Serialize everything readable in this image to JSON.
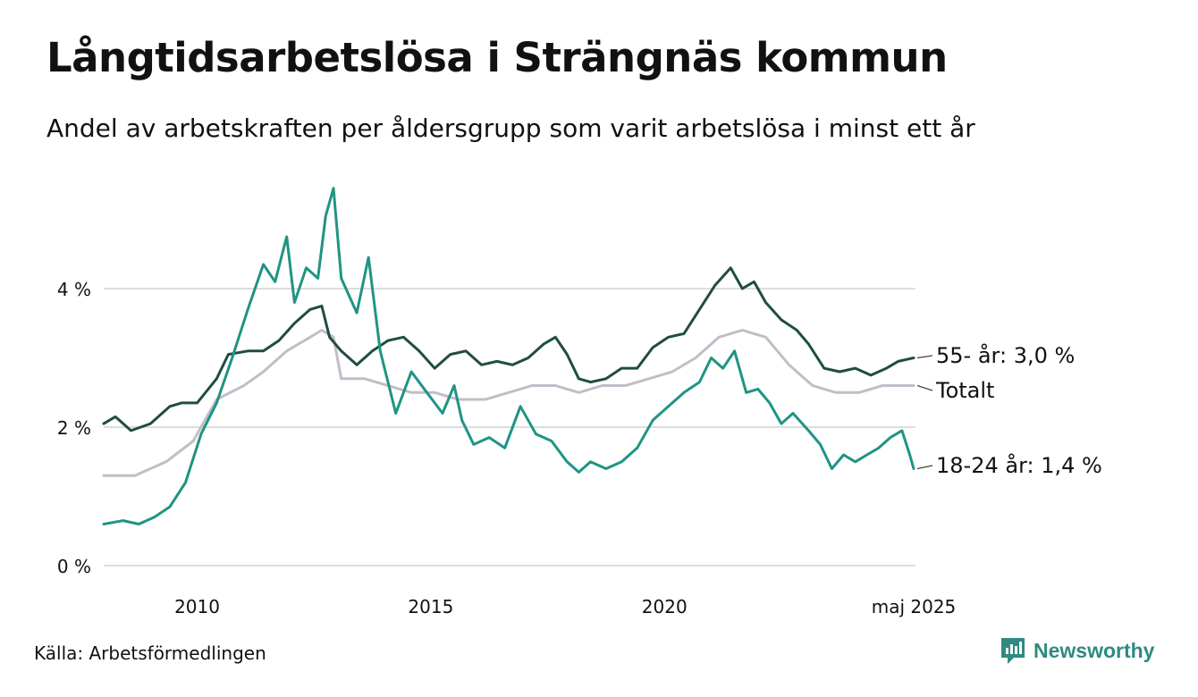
{
  "title": "Långtidsarbetslösa i Strängnäs kommun",
  "subtitle": "Andel av arbetskraften per åldersgrupp som varit arbetslösa i minst ett år",
  "source": "Källa: Arbetsförmedlingen",
  "brand": "Newsworthy",
  "colors": {
    "grid": "#dddddd",
    "older": "#1f4d44",
    "total": "#c2bdc8",
    "young": "#1f9484",
    "brand": "#2f8a83"
  },
  "chart_data": {
    "type": "line",
    "ylim": [
      0,
      5.5
    ],
    "xlim": [
      "2008-01",
      "2025-05"
    ],
    "yticks": [
      {
        "value": 0,
        "label": "0 %"
      },
      {
        "value": 2,
        "label": "2 %"
      },
      {
        "value": 4,
        "label": "4 %"
      }
    ],
    "xticks": [
      {
        "date": "2010-01",
        "label": "2010"
      },
      {
        "date": "2015-01",
        "label": "2015"
      },
      {
        "date": "2020-01",
        "label": "2020"
      },
      {
        "date": "2025-05",
        "label": "maj 2025"
      }
    ],
    "grid": true,
    "series": [
      {
        "key": "total",
        "label": "Totalt",
        "color": "#c2bdc8",
        "points": [
          [
            "2008-01",
            1.3
          ],
          [
            "2008-09",
            1.3
          ],
          [
            "2009-05",
            1.5
          ],
          [
            "2009-12",
            1.8
          ],
          [
            "2010-06",
            2.4
          ],
          [
            "2011-01",
            2.6
          ],
          [
            "2011-06",
            2.8
          ],
          [
            "2011-12",
            3.1
          ],
          [
            "2012-06",
            3.3
          ],
          [
            "2012-09",
            3.4
          ],
          [
            "2012-12",
            3.3
          ],
          [
            "2013-02",
            2.7
          ],
          [
            "2013-08",
            2.7
          ],
          [
            "2014-02",
            2.6
          ],
          [
            "2014-08",
            2.5
          ],
          [
            "2015-02",
            2.5
          ],
          [
            "2015-08",
            2.4
          ],
          [
            "2016-03",
            2.4
          ],
          [
            "2016-09",
            2.5
          ],
          [
            "2017-03",
            2.6
          ],
          [
            "2017-09",
            2.6
          ],
          [
            "2018-03",
            2.5
          ],
          [
            "2018-09",
            2.6
          ],
          [
            "2019-03",
            2.6
          ],
          [
            "2019-09",
            2.7
          ],
          [
            "2020-03",
            2.8
          ],
          [
            "2020-09",
            3.0
          ],
          [
            "2021-03",
            3.3
          ],
          [
            "2021-09",
            3.4
          ],
          [
            "2022-03",
            3.3
          ],
          [
            "2022-09",
            2.9
          ],
          [
            "2023-03",
            2.6
          ],
          [
            "2023-09",
            2.5
          ],
          [
            "2024-03",
            2.5
          ],
          [
            "2024-09",
            2.6
          ],
          [
            "2025-05",
            2.6
          ]
        ]
      },
      {
        "key": "older",
        "label": "55- år: 3,0 %",
        "color": "#1f4d44",
        "points": [
          [
            "2008-01",
            2.05
          ],
          [
            "2008-04",
            2.15
          ],
          [
            "2008-08",
            1.95
          ],
          [
            "2009-01",
            2.05
          ],
          [
            "2009-06",
            2.3
          ],
          [
            "2009-09",
            2.35
          ],
          [
            "2010-01",
            2.35
          ],
          [
            "2010-06",
            2.7
          ],
          [
            "2010-09",
            3.05
          ],
          [
            "2011-02",
            3.1
          ],
          [
            "2011-06",
            3.1
          ],
          [
            "2011-10",
            3.25
          ],
          [
            "2012-02",
            3.5
          ],
          [
            "2012-06",
            3.7
          ],
          [
            "2012-09",
            3.75
          ],
          [
            "2012-11",
            3.3
          ],
          [
            "2013-02",
            3.1
          ],
          [
            "2013-06",
            2.9
          ],
          [
            "2013-10",
            3.1
          ],
          [
            "2014-02",
            3.25
          ],
          [
            "2014-06",
            3.3
          ],
          [
            "2014-10",
            3.1
          ],
          [
            "2015-02",
            2.85
          ],
          [
            "2015-06",
            3.05
          ],
          [
            "2015-10",
            3.1
          ],
          [
            "2016-02",
            2.9
          ],
          [
            "2016-06",
            2.95
          ],
          [
            "2016-10",
            2.9
          ],
          [
            "2017-02",
            3.0
          ],
          [
            "2017-06",
            3.2
          ],
          [
            "2017-09",
            3.3
          ],
          [
            "2017-12",
            3.05
          ],
          [
            "2018-03",
            2.7
          ],
          [
            "2018-06",
            2.65
          ],
          [
            "2018-10",
            2.7
          ],
          [
            "2019-02",
            2.85
          ],
          [
            "2019-06",
            2.85
          ],
          [
            "2019-10",
            3.15
          ],
          [
            "2020-02",
            3.3
          ],
          [
            "2020-06",
            3.35
          ],
          [
            "2020-10",
            3.7
          ],
          [
            "2021-02",
            4.05
          ],
          [
            "2021-06",
            4.3
          ],
          [
            "2021-09",
            4.0
          ],
          [
            "2021-12",
            4.1
          ],
          [
            "2022-03",
            3.8
          ],
          [
            "2022-07",
            3.55
          ],
          [
            "2022-11",
            3.4
          ],
          [
            "2023-02",
            3.2
          ],
          [
            "2023-06",
            2.85
          ],
          [
            "2023-10",
            2.8
          ],
          [
            "2024-02",
            2.85
          ],
          [
            "2024-06",
            2.75
          ],
          [
            "2024-10",
            2.85
          ],
          [
            "2025-01",
            2.95
          ],
          [
            "2025-05",
            3.0
          ]
        ]
      },
      {
        "key": "young",
        "label": "18-24 år: 1,4 %",
        "color": "#1f9484",
        "points": [
          [
            "2008-01",
            0.6
          ],
          [
            "2008-06",
            0.65
          ],
          [
            "2008-10",
            0.6
          ],
          [
            "2009-02",
            0.7
          ],
          [
            "2009-06",
            0.85
          ],
          [
            "2009-10",
            1.2
          ],
          [
            "2010-02",
            1.9
          ],
          [
            "2010-06",
            2.35
          ],
          [
            "2010-10",
            3.0
          ],
          [
            "2011-02",
            3.7
          ],
          [
            "2011-06",
            4.35
          ],
          [
            "2011-09",
            4.1
          ],
          [
            "2011-12",
            4.75
          ],
          [
            "2012-02",
            3.8
          ],
          [
            "2012-05",
            4.3
          ],
          [
            "2012-08",
            4.15
          ],
          [
            "2012-10",
            5.05
          ],
          [
            "2012-12",
            5.45
          ],
          [
            "2013-02",
            4.15
          ],
          [
            "2013-06",
            3.65
          ],
          [
            "2013-09",
            4.45
          ],
          [
            "2013-12",
            3.1
          ],
          [
            "2014-04",
            2.2
          ],
          [
            "2014-08",
            2.8
          ],
          [
            "2014-12",
            2.5
          ],
          [
            "2015-04",
            2.2
          ],
          [
            "2015-07",
            2.6
          ],
          [
            "2015-09",
            2.1
          ],
          [
            "2015-12",
            1.75
          ],
          [
            "2016-04",
            1.85
          ],
          [
            "2016-08",
            1.7
          ],
          [
            "2016-12",
            2.3
          ],
          [
            "2017-04",
            1.9
          ],
          [
            "2017-08",
            1.8
          ],
          [
            "2017-12",
            1.5
          ],
          [
            "2018-03",
            1.35
          ],
          [
            "2018-06",
            1.5
          ],
          [
            "2018-10",
            1.4
          ],
          [
            "2019-02",
            1.5
          ],
          [
            "2019-06",
            1.7
          ],
          [
            "2019-10",
            2.1
          ],
          [
            "2020-02",
            2.3
          ],
          [
            "2020-06",
            2.5
          ],
          [
            "2020-10",
            2.65
          ],
          [
            "2021-01",
            3.0
          ],
          [
            "2021-04",
            2.85
          ],
          [
            "2021-07",
            3.1
          ],
          [
            "2021-10",
            2.5
          ],
          [
            "2022-01",
            2.55
          ],
          [
            "2022-04",
            2.35
          ],
          [
            "2022-07",
            2.05
          ],
          [
            "2022-10",
            2.2
          ],
          [
            "2023-02",
            1.95
          ],
          [
            "2023-05",
            1.75
          ],
          [
            "2023-08",
            1.4
          ],
          [
            "2023-11",
            1.6
          ],
          [
            "2024-02",
            1.5
          ],
          [
            "2024-05",
            1.6
          ],
          [
            "2024-08",
            1.7
          ],
          [
            "2024-11",
            1.85
          ],
          [
            "2025-02",
            1.95
          ],
          [
            "2025-04",
            1.6
          ],
          [
            "2025-05",
            1.4
          ]
        ]
      }
    ]
  }
}
